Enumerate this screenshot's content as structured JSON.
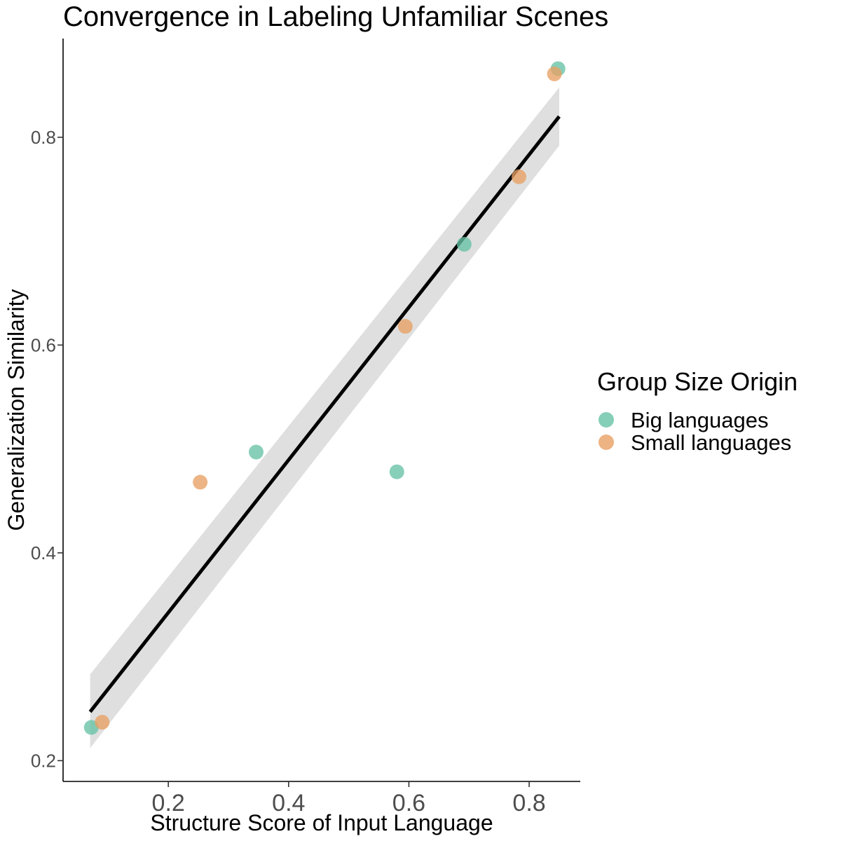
{
  "chart_data": {
    "type": "scatter",
    "title": "Convergence in Labeling Unfamiliar Scenes",
    "xlabel": "Structure Score of Input Language",
    "ylabel": "Generalization Similarity",
    "xlim": [
      0.025,
      0.885
    ],
    "ylim": [
      0.18,
      0.895
    ],
    "xticks": [
      0.2,
      0.4,
      0.6,
      0.8
    ],
    "xtick_labels": [
      "0.2",
      "0.4",
      "0.6",
      "0.8"
    ],
    "yticks": [
      0.2,
      0.4,
      0.6,
      0.8
    ],
    "ytick_labels": [
      "0.2",
      "0.4",
      "0.6",
      "0.8"
    ],
    "grid": false,
    "legend": {
      "title": "Group Size Origin",
      "placement": "right"
    },
    "series": [
      {
        "name": "Big languages",
        "color": "#66c2a5",
        "x": [
          0.072,
          0.346,
          0.58,
          0.692,
          0.848
        ],
        "y": [
          0.232,
          0.497,
          0.478,
          0.697,
          0.866
        ]
      },
      {
        "name": "Small languages",
        "color": "#e8a063",
        "x": [
          0.09,
          0.253,
          0.594,
          0.783,
          0.842
        ],
        "y": [
          0.237,
          0.468,
          0.618,
          0.762,
          0.861
        ]
      }
    ],
    "fit": {
      "type": "linear",
      "color": "#000000",
      "band_color": "#d9d9d9",
      "x": [
        0.07,
        0.85
      ],
      "y": [
        0.247,
        0.82
      ],
      "ci_low": [
        0.212,
        0.792
      ],
      "ci_high": [
        0.283,
        0.848
      ]
    }
  }
}
